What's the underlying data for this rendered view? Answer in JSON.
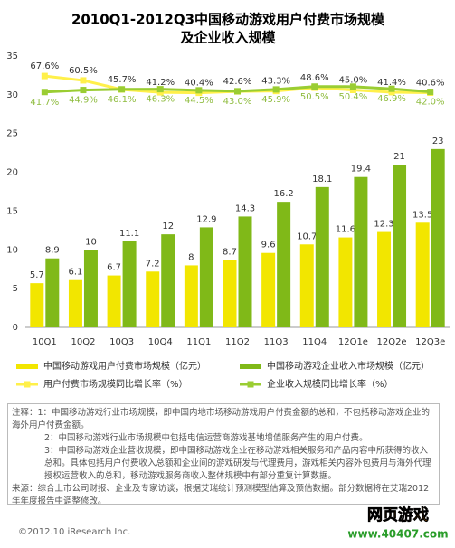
{
  "chart_data": {
    "type": "bar",
    "title": "2010Q1-2012Q3中国移动游戏用户付费市场规模",
    "subtitle": "及企业收入规模",
    "categories": [
      "10Q1",
      "10Q2",
      "10Q3",
      "10Q4",
      "11Q1",
      "11Q2",
      "11Q3",
      "11Q4",
      "12Q1e",
      "12Q2e",
      "12Q3e"
    ],
    "series": [
      {
        "name": "中国移动游戏用户付费市场规模（亿元）",
        "color": "#f2e600",
        "values": [
          5.7,
          6.1,
          6.7,
          7.2,
          8.0,
          8.7,
          9.6,
          10.7,
          11.6,
          12.3,
          13.5
        ]
      },
      {
        "name": "中国移动游戏企业收入市场规模（亿元）",
        "color": "#80b918",
        "values": [
          8.9,
          10.0,
          11.1,
          12.0,
          12.9,
          14.3,
          16.2,
          18.1,
          19.4,
          21.0,
          23.0
        ]
      },
      {
        "name": "用户付费市场规模同比增长率（%）",
        "color": "#fff04a",
        "axis": "y2",
        "label_position": "above",
        "values": [
          67.6,
          60.5,
          45.7,
          41.2,
          40.4,
          42.6,
          43.3,
          48.6,
          45.0,
          41.4,
          40.6
        ],
        "value_labels": [
          "67.6%",
          "60.5%",
          "45.7%",
          "41.2%",
          "40.4%",
          "42.6%",
          "43.3%",
          "48.6%",
          "45.0%",
          "41.4%",
          "40.6%"
        ]
      },
      {
        "name": "企业收入规模同比增长率（%）",
        "color": "#9acd32",
        "axis": "y2",
        "label_position": "below",
        "values": [
          41.7,
          44.9,
          46.1,
          46.3,
          44.5,
          43.0,
          45.9,
          50.5,
          50.4,
          46.9,
          42.0
        ],
        "value_labels": [
          "41.7%",
          "44.9%",
          "46.1%",
          "46.3%",
          "44.5%",
          "43.0%",
          "45.9%",
          "50.5%",
          "50.4%",
          "46.9%",
          "42.0%"
        ]
      }
    ],
    "ylim": [
      0,
      35
    ],
    "yticks": [
      0,
      5,
      10,
      15,
      20,
      25,
      30,
      35
    ],
    "y2lim": [
      -340,
      100
    ],
    "grid": false
  },
  "notes": [
    "注释：1：中国移动游戏行业市场规模，即中国内地市场移动游戏用户付费金额的总和，不包括移动游戏企业的海外用户付费金额。",
    "2：中国移动游戏行业市场规模中包括电信运营商游戏基地增值服务产生的用户付费。",
    "3：中国移动游戏企业营收规模，即中国移动游戏企业在移动游戏相关服务和产品内容中所获得的收入总和。具体包括用户付费收入总额和企业间的游戏研发与代理费用，游戏相关内容外包费用与海外代理授权运营收入的总和，移动游戏服务商收入整体规模中有部分重复计算数据。",
    "来源：综合上市公司财报、企业及专家访谈，根据艾瑞统计预测模型估算及预估数据。部分数据将在艾瑞2012年年度报告中调整修改。"
  ],
  "footer": "©2012.10 iResearch Inc.",
  "watermark": {
    "title": "网页游戏",
    "url": "www.40407.com"
  }
}
